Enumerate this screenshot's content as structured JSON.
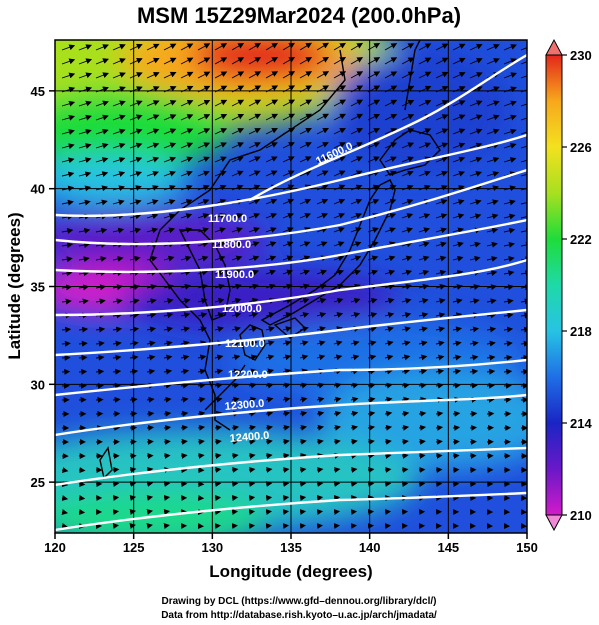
{
  "title": "MSM 15Z29Mar2024 (200.0hPa)",
  "xlabel": "Longitude (degrees)",
  "ylabel": "Latitude  (degrees)",
  "xticks": [
    120,
    125,
    130,
    135,
    140,
    145,
    150
  ],
  "yticks": [
    25,
    30,
    35,
    40,
    45
  ],
  "xlim": [
    120,
    150
  ],
  "ylim": [
    22.4,
    47.6
  ],
  "colorbar": {
    "min": 210,
    "max": 230,
    "ticks": [
      210,
      214,
      218,
      222,
      226,
      230
    ],
    "colors": [
      "#d11bc9",
      "#6a18c8",
      "#1a25c4",
      "#1f6fe6",
      "#27c3e3",
      "#1fd9a8",
      "#1fdc3a",
      "#a8e01f",
      "#f3e11f",
      "#f7a81c",
      "#f05a1c",
      "#e3271c"
    ]
  },
  "contours": [
    {
      "label": "11600.0"
    },
    {
      "label": "11700.0"
    },
    {
      "label": "11800.0"
    },
    {
      "label": "11900.0"
    },
    {
      "label": "12000.0"
    },
    {
      "label": "12100.0"
    },
    {
      "label": "12200.0"
    },
    {
      "label": "12300.0"
    },
    {
      "label": "12400.0"
    }
  ],
  "contour_values": [
    11600,
    11700,
    11800,
    11900,
    12000,
    12100,
    12200,
    12300,
    12400
  ],
  "credits": {
    "line1": "Drawing by DCL (https://www.gfd–dennou.org/library/dcl/)",
    "line2": "Data from http://database.rish.kyoto–u.ac.jp/arch/jmadata/"
  }
}
